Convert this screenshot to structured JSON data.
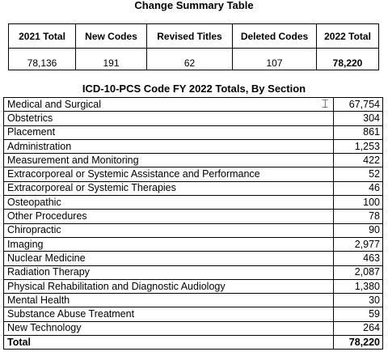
{
  "summary": {
    "title": "Change Summary Table",
    "headers": [
      "2021 Total",
      "New Codes",
      "Revised Titles",
      "Deleted Codes",
      "2022 Total"
    ],
    "values": [
      "78,136",
      "191",
      "62",
      "107",
      "78,220"
    ]
  },
  "sections": {
    "title": "ICD-10-PCS Code FY 2022 Totals, By Section",
    "rows": [
      {
        "name": "Medical and Surgical",
        "count": "67,754"
      },
      {
        "name": "Obstetrics",
        "count": "304"
      },
      {
        "name": "Placement",
        "count": "861"
      },
      {
        "name": "Administration",
        "count": "1,253"
      },
      {
        "name": "Measurement and Monitoring",
        "count": "422"
      },
      {
        "name": "Extracorporeal or Systemic Assistance and Performance",
        "count": "52"
      },
      {
        "name": "Extracorporeal or Systemic Therapies",
        "count": "46"
      },
      {
        "name": "Osteopathic",
        "count": "100"
      },
      {
        "name": "Other Procedures",
        "count": "78"
      },
      {
        "name": "Chiropractic",
        "count": "90"
      },
      {
        "name": "Imaging",
        "count": "2,977"
      },
      {
        "name": "Nuclear Medicine",
        "count": "463"
      },
      {
        "name": "Radiation Therapy",
        "count": "2,087"
      },
      {
        "name": "Physical Rehabilitation and Diagnostic Audiology",
        "count": "1,380"
      },
      {
        "name": "Mental Health",
        "count": "30"
      },
      {
        "name": "Substance Abuse Treatment",
        "count": "59"
      },
      {
        "name": "New Technology",
        "count": "264"
      }
    ],
    "total_label": "Total",
    "total_count": "78,220"
  }
}
